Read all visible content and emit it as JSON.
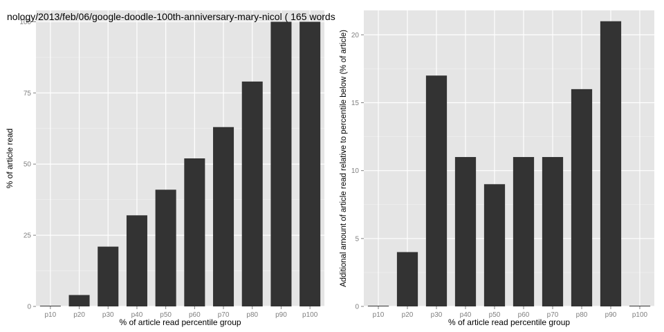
{
  "title": "nology/2013/feb/06/google-doodle-100th-anniversary-mary-nicol ( 165 words",
  "colors": {
    "panel_background": "#e5e5e5",
    "major_grid": "#ffffff",
    "minor_grid": "#f2f2f2",
    "bar_fill": "#333333",
    "tick_text": "#7f7f7f",
    "axis_title_text": "#000000"
  },
  "chart_data": [
    {
      "type": "bar",
      "categories": [
        "p10",
        "p20",
        "p30",
        "p40",
        "p50",
        "p60",
        "p70",
        "p80",
        "p90",
        "p100"
      ],
      "values": [
        0,
        4,
        21,
        32,
        41,
        52,
        63,
        79,
        100,
        100
      ],
      "xlabel": "% of article read percentile group",
      "ylabel": "% of article read",
      "ylim": [
        0,
        104
      ],
      "yticks": [
        0,
        25,
        50,
        75,
        100
      ],
      "grid": true
    },
    {
      "type": "bar",
      "categories": [
        "p10",
        "p20",
        "p30",
        "p40",
        "p50",
        "p60",
        "p70",
        "p80",
        "p90",
        "p100"
      ],
      "values": [
        0,
        4,
        17,
        11,
        9,
        11,
        11,
        16,
        21,
        0
      ],
      "xlabel": "% of article read percentile group",
      "ylabel": "Additional amount of article read relative to percentile below (% of article)",
      "ylim": [
        0,
        21.8
      ],
      "yticks": [
        0,
        5,
        10,
        15,
        20
      ],
      "grid": true
    }
  ]
}
